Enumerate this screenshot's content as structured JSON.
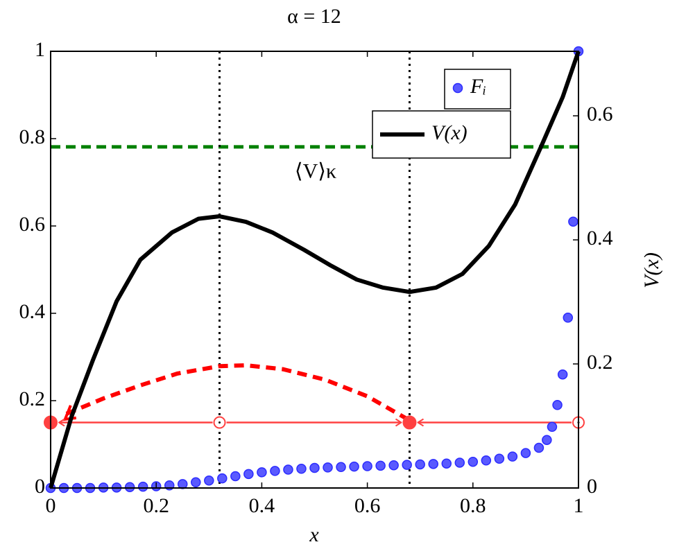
{
  "chart_data": {
    "type": "scatter-line",
    "title": "α = 12",
    "x_label": "x",
    "y2_label": "V(x)",
    "xlim": [
      0,
      1
    ],
    "ylim": [
      0,
      1
    ],
    "y2lim": [
      0,
      0.704
    ],
    "xticks": [
      0,
      0.2,
      0.4,
      0.6,
      0.8,
      1
    ],
    "yticks": [
      0,
      0.2,
      0.4,
      0.6,
      0.8,
      1
    ],
    "y2ticks": [
      0,
      0.2,
      0.4,
      0.6
    ],
    "grid": false,
    "legend": "north east",
    "series": [
      {
        "name": "Fᵢ",
        "type": "scatter",
        "color": "#2b2bff",
        "x": [
          0,
          0.025,
          0.05,
          0.075,
          0.1,
          0.125,
          0.15,
          0.175,
          0.2,
          0.225,
          0.25,
          0.275,
          0.3,
          0.325,
          0.35,
          0.375,
          0.4,
          0.425,
          0.45,
          0.475,
          0.5,
          0.525,
          0.55,
          0.575,
          0.6,
          0.625,
          0.65,
          0.675,
          0.7,
          0.725,
          0.75,
          0.775,
          0.8,
          0.825,
          0.85,
          0.875,
          0.9,
          0.925,
          0.94,
          0.95,
          0.96,
          0.97,
          0.98,
          0.99,
          1
        ],
        "values": [
          0,
          0,
          0,
          0,
          0.001,
          0.001,
          0.002,
          0.003,
          0.004,
          0.006,
          0.009,
          0.013,
          0.017,
          0.022,
          0.027,
          0.032,
          0.036,
          0.039,
          0.042,
          0.044,
          0.046,
          0.047,
          0.048,
          0.049,
          0.05,
          0.051,
          0.052,
          0.053,
          0.054,
          0.055,
          0.056,
          0.058,
          0.06,
          0.063,
          0.067,
          0.072,
          0.08,
          0.092,
          0.11,
          0.14,
          0.19,
          0.26,
          0.39,
          0.61,
          1
        ]
      },
      {
        "name": "V(x)",
        "type": "line",
        "axis": "y2",
        "color": "#000000",
        "x": [
          0,
          0.04,
          0.08,
          0.125,
          0.17,
          0.23,
          0.28,
          0.32,
          0.37,
          0.42,
          0.48,
          0.53,
          0.58,
          0.63,
          0.68,
          0.73,
          0.78,
          0.83,
          0.88,
          0.93,
          0.97,
          1
        ],
        "values": [
          0,
          0.116,
          0.206,
          0.301,
          0.368,
          0.412,
          0.434,
          0.438,
          0.429,
          0.412,
          0.384,
          0.359,
          0.336,
          0.323,
          0.316,
          0.323,
          0.345,
          0.39,
          0.457,
          0.552,
          0.63,
          0.704
        ]
      }
    ],
    "vlines": {
      "x": [
        0.32,
        0.68
      ],
      "color": "#000000"
    },
    "hline": {
      "value": 0.55,
      "axis": "y2",
      "color": "#008000",
      "label": "⟨V⟩κ"
    },
    "arc": {
      "color": "#ff0000",
      "x": [
        0.03,
        0.1,
        0.17,
        0.24,
        0.32,
        0.37,
        0.44,
        0.52,
        0.6,
        0.68
      ],
      "values": [
        0.17,
        0.205,
        0.235,
        0.262,
        0.279,
        0.281,
        0.272,
        0.248,
        0.21,
        0.155
      ]
    },
    "fixed_points": {
      "color": "#ff4040",
      "y": 0.15,
      "stable": [
        0,
        0.68
      ],
      "unstable": [
        0.32,
        1
      ]
    }
  }
}
